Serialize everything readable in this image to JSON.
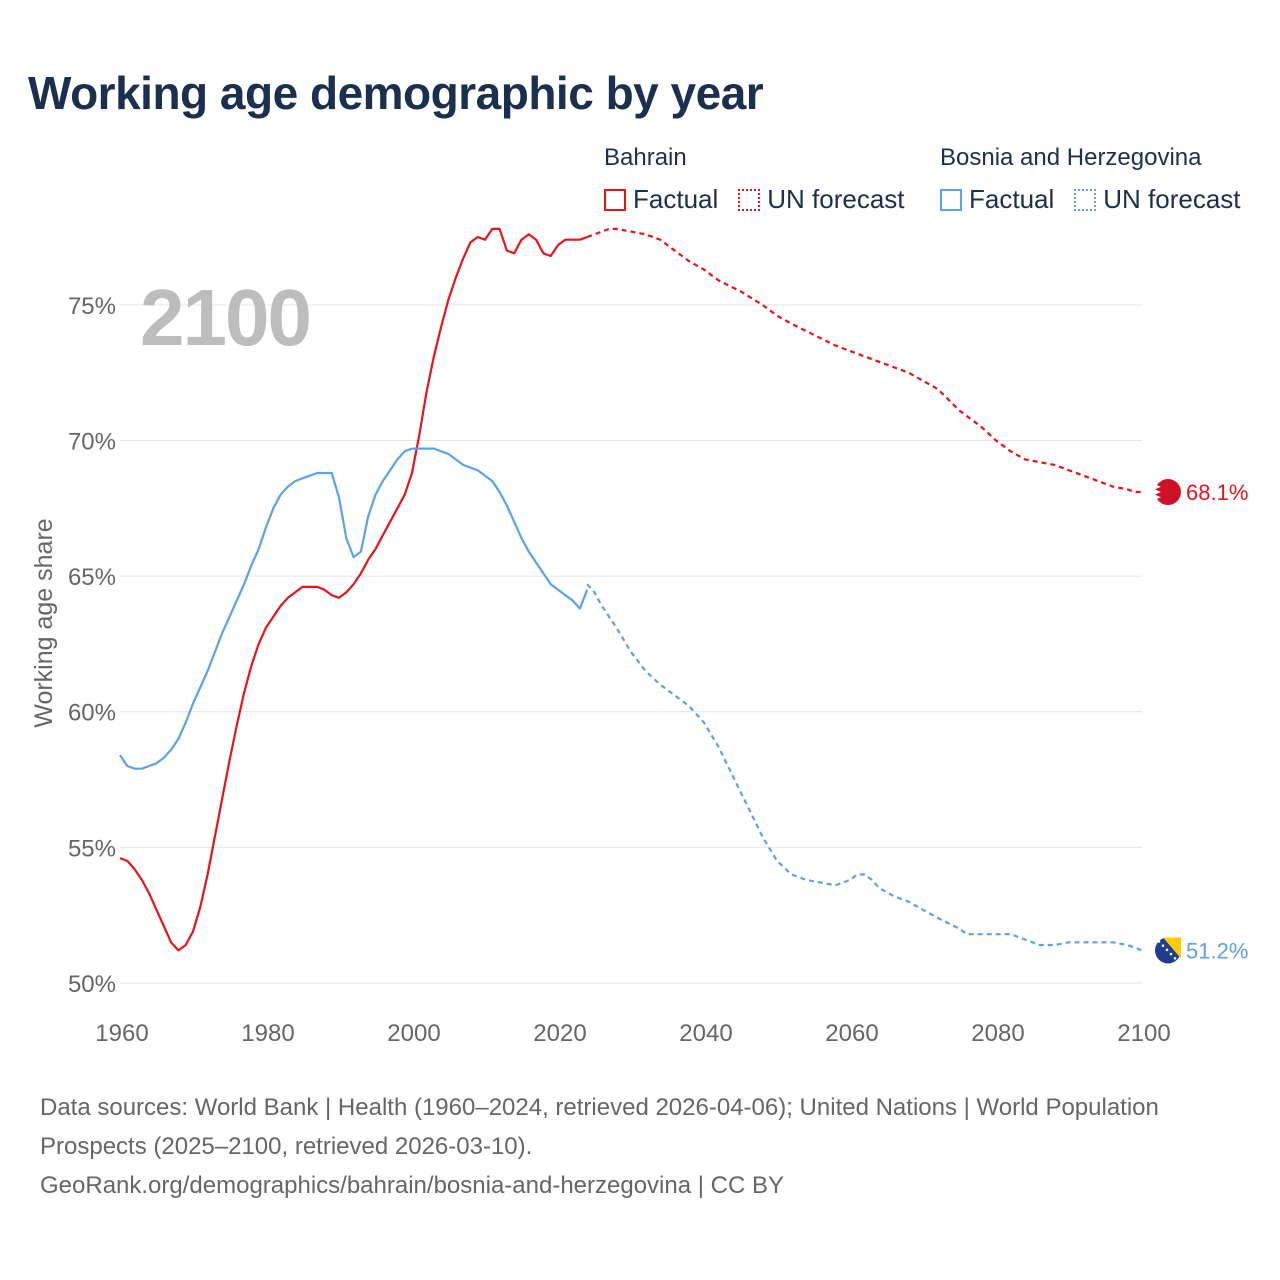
{
  "title": "Working age demographic by year",
  "year_label": "2100",
  "legend": {
    "groups": [
      {
        "country": "Bahrain",
        "color": "#e8141c",
        "factual_label": "Factual",
        "forecast_label": "UN forecast"
      },
      {
        "country": "Bosnia and Herzegovina",
        "color": "#5ba3e6",
        "factual_label": "Factual",
        "forecast_label": "UN forecast"
      }
    ]
  },
  "source": {
    "line1": "Data sources: World Bank | Health (1960–2024, retrieved 2026-04-06); United Nations | World Population Prospects (2025–2100, retrieved 2026-03-10).",
    "line2": "GeoRank.org/demographics/bahrain/bosnia-and-herzegovina | CC BY"
  },
  "chart_data": {
    "type": "line",
    "title": "Working age demographic by year",
    "xlabel": "",
    "ylabel": "Working age share",
    "xlim": [
      1960,
      2100
    ],
    "ylim": [
      50,
      77.5
    ],
    "xticks": [
      1960,
      1980,
      2000,
      2020,
      2040,
      2060,
      2080,
      2100
    ],
    "xtick_labels": [
      "1960",
      "1980",
      "2000",
      "2020",
      "2040",
      "2060",
      "2080",
      "2100"
    ],
    "yticks": [
      50,
      55,
      60,
      65,
      70,
      75
    ],
    "ytick_labels": [
      "50%",
      "55%",
      "60%",
      "65%",
      "70%",
      "75%"
    ],
    "grid": true,
    "legend_position": "top-right",
    "series": [
      {
        "name": "Bahrain",
        "color": "#e8141c",
        "end_label": "68.1%",
        "end_value": 68.1,
        "factual": {
          "x": [
            1960,
            1961,
            1962,
            1963,
            1964,
            1965,
            1966,
            1967,
            1968,
            1969,
            1970,
            1971,
            1972,
            1973,
            1974,
            1975,
            1976,
            1977,
            1978,
            1979,
            1980,
            1981,
            1982,
            1983,
            1984,
            1985,
            1986,
            1987,
            1988,
            1989,
            1990,
            1991,
            1992,
            1993,
            1994,
            1995,
            1996,
            1997,
            1998,
            1999,
            2000,
            2001,
            2002,
            2003,
            2004,
            2005,
            2006,
            2007,
            2008,
            2009,
            2010,
            2011,
            2012,
            2013,
            2014,
            2015,
            2016,
            2017,
            2018,
            2019,
            2020,
            2021,
            2022,
            2023,
            2024
          ],
          "y": [
            54.6,
            54.5,
            54.2,
            53.8,
            53.3,
            52.7,
            52.1,
            51.5,
            51.2,
            51.4,
            51.9,
            52.8,
            54.0,
            55.4,
            56.8,
            58.2,
            59.5,
            60.7,
            61.7,
            62.5,
            63.1,
            63.5,
            63.9,
            64.2,
            64.4,
            64.6,
            64.6,
            64.6,
            64.5,
            64.3,
            64.2,
            64.4,
            64.7,
            65.1,
            65.6,
            66.0,
            66.5,
            67.0,
            67.5,
            68.0,
            68.8,
            70.2,
            71.8,
            73.1,
            74.2,
            75.2,
            76.0,
            76.7,
            77.3,
            77.5,
            77.4,
            77.8,
            77.8,
            77.0,
            76.9,
            77.4,
            77.6,
            77.4,
            76.9,
            76.8,
            77.2,
            77.4,
            77.4,
            77.4,
            77.5
          ]
        },
        "forecast": {
          "x": [
            2024,
            2025,
            2026,
            2027,
            2028,
            2030,
            2032,
            2034,
            2036,
            2038,
            2040,
            2042,
            2045,
            2048,
            2050,
            2052,
            2055,
            2058,
            2060,
            2062,
            2065,
            2068,
            2070,
            2072,
            2075,
            2078,
            2080,
            2082,
            2084,
            2086,
            2088,
            2090,
            2092,
            2094,
            2096,
            2098,
            2099,
            2100
          ],
          "y": [
            77.5,
            77.6,
            77.7,
            77.8,
            77.8,
            77.7,
            77.6,
            77.4,
            77.0,
            76.6,
            76.3,
            75.9,
            75.5,
            75.0,
            74.6,
            74.3,
            73.9,
            73.5,
            73.3,
            73.1,
            72.8,
            72.5,
            72.2,
            71.9,
            71.1,
            70.5,
            70.0,
            69.6,
            69.3,
            69.2,
            69.1,
            68.9,
            68.7,
            68.5,
            68.3,
            68.2,
            68.1,
            68.1
          ]
        }
      },
      {
        "name": "Bosnia and Herzegovina",
        "color": "#5ba3e6",
        "end_label": "51.2%",
        "end_value": 51.2,
        "factual": {
          "x": [
            1960,
            1961,
            1962,
            1963,
            1964,
            1965,
            1966,
            1967,
            1968,
            1969,
            1970,
            1971,
            1972,
            1973,
            1974,
            1975,
            1976,
            1977,
            1978,
            1979,
            1980,
            1981,
            1982,
            1983,
            1984,
            1985,
            1986,
            1987,
            1988,
            1989,
            1990,
            1991,
            1992,
            1993,
            1994,
            1995,
            1996,
            1997,
            1998,
            1999,
            2000,
            2001,
            2002,
            2003,
            2004,
            2005,
            2006,
            2007,
            2008,
            2009,
            2010,
            2011,
            2012,
            2013,
            2014,
            2015,
            2016,
            2017,
            2018,
            2019,
            2020,
            2021,
            2022,
            2023,
            2024
          ],
          "y": [
            58.4,
            58.0,
            57.9,
            57.9,
            58.0,
            58.1,
            58.3,
            58.6,
            59.0,
            59.6,
            60.3,
            60.9,
            61.5,
            62.2,
            62.9,
            63.5,
            64.1,
            64.7,
            65.4,
            66.0,
            66.8,
            67.5,
            68.0,
            68.3,
            68.5,
            68.6,
            68.7,
            68.8,
            68.8,
            68.8,
            67.9,
            66.4,
            65.7,
            65.9,
            67.2,
            68.0,
            68.5,
            68.9,
            69.3,
            69.6,
            69.7,
            69.7,
            69.7,
            69.7,
            69.6,
            69.5,
            69.3,
            69.1,
            69.0,
            68.9,
            68.7,
            68.5,
            68.1,
            67.6,
            67.0,
            66.4,
            65.9,
            65.5,
            65.1,
            64.7,
            64.5,
            64.3,
            64.1,
            63.8,
            64.5
          ]
        },
        "forecast": {
          "x": [
            2024,
            2025,
            2026,
            2028,
            2030,
            2032,
            2034,
            2036,
            2038,
            2040,
            2042,
            2044,
            2046,
            2048,
            2050,
            2052,
            2054,
            2056,
            2058,
            2060,
            2061,
            2062,
            2063,
            2064,
            2066,
            2068,
            2070,
            2072,
            2075,
            2076,
            2078,
            2080,
            2082,
            2084,
            2086,
            2088,
            2090,
            2092,
            2094,
            2096,
            2098,
            2100
          ],
          "y": [
            64.7,
            64.4,
            63.9,
            63.1,
            62.2,
            61.5,
            61.0,
            60.6,
            60.2,
            59.6,
            58.7,
            57.6,
            56.5,
            55.4,
            54.5,
            54.0,
            53.8,
            53.7,
            53.6,
            53.8,
            54.0,
            54.0,
            53.8,
            53.5,
            53.2,
            53.0,
            52.7,
            52.4,
            52.0,
            51.8,
            51.8,
            51.8,
            51.8,
            51.6,
            51.4,
            51.4,
            51.5,
            51.5,
            51.5,
            51.5,
            51.4,
            51.2
          ]
        }
      }
    ]
  }
}
